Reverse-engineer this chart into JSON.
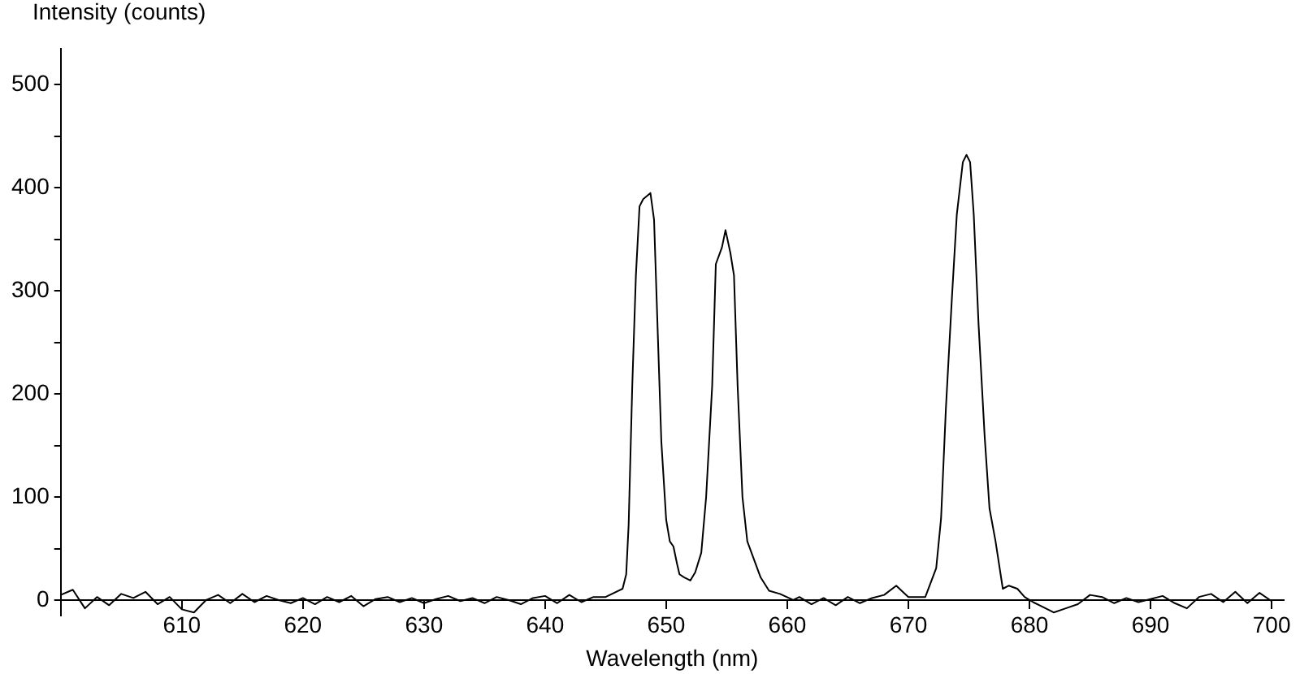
{
  "chart_data": {
    "type": "line",
    "xlabel": "Wavelength (nm)",
    "ylabel": "Intensity (counts)",
    "x": [
      600,
      601,
      602,
      603,
      604,
      605,
      606,
      607,
      608,
      609,
      610,
      611,
      612,
      613,
      614,
      615,
      616,
      617,
      618,
      619,
      620,
      621,
      622,
      623,
      624,
      625,
      626,
      627,
      628,
      629,
      630,
      631,
      632,
      633,
      634,
      635,
      636,
      637,
      638,
      639,
      640,
      641,
      642,
      643,
      644,
      645,
      646.4,
      646.7,
      646.9,
      647.2,
      647.5,
      647.8,
      648.1,
      648.7,
      649.0,
      649.3,
      649.6,
      650.0,
      650.3,
      650.6,
      650.9,
      651.1,
      651.5,
      652.0,
      652.4,
      652.9,
      653.3,
      653.8,
      654.1,
      654.6,
      654.9,
      655.3,
      655.6,
      655.9,
      656.3,
      656.7,
      657.2,
      657.8,
      658.5,
      659.4,
      660.5,
      661,
      662,
      663,
      664,
      665,
      666,
      667,
      668,
      669,
      670.0,
      671.4,
      672.3,
      672.7,
      673.1,
      673.6,
      674.0,
      674.5,
      674.8,
      675.1,
      675.4,
      675.8,
      676.3,
      676.7,
      677.2,
      677.8,
      678.3,
      679.0,
      679.6,
      680.3,
      681,
      682,
      683,
      684,
      685,
      686,
      687,
      688,
      689,
      690,
      691,
      692,
      693,
      694,
      695,
      696,
      697,
      698,
      699,
      700
    ],
    "series": [
      {
        "color": "#000000",
        "values": [
          5,
          10,
          -8,
          3,
          -5,
          6,
          2,
          8,
          -4,
          3,
          -9,
          -12,
          0,
          5,
          -3,
          6,
          -2,
          4,
          0,
          -3,
          2,
          -4,
          3,
          -2,
          4,
          -6,
          1,
          3,
          -2,
          2,
          -3,
          1,
          4,
          -1,
          2,
          -3,
          3,
          0,
          -4,
          2,
          4,
          -3,
          5,
          -2,
          3,
          3,
          11,
          25,
          73,
          208,
          315,
          382,
          389,
          395,
          369,
          261,
          154,
          78,
          57,
          52,
          35,
          25,
          22,
          19,
          27,
          46,
          100,
          208,
          326,
          342,
          359,
          337,
          315,
          208,
          100,
          57,
          41,
          22,
          9,
          6,
          0,
          3,
          -4,
          2,
          -5,
          3,
          -3,
          2,
          5,
          14,
          3,
          3,
          31,
          79,
          186,
          294,
          374,
          425,
          432,
          425,
          374,
          267,
          159,
          89,
          57,
          11,
          14,
          11,
          3,
          -2,
          -6,
          -12,
          -8,
          -4,
          5,
          3,
          -3,
          2,
          -2,
          1,
          4,
          -3,
          -8,
          3,
          6,
          -2,
          8,
          -3,
          7,
          -1
        ]
      }
    ],
    "xlim": [
      600,
      701
    ],
    "xticks": [
      610,
      620,
      630,
      640,
      650,
      660,
      670,
      680,
      690,
      700
    ],
    "ylim": [
      -15,
      535
    ],
    "yticks": [
      0,
      {
        "value": 50,
        "label": null
      },
      100,
      {
        "value": 150,
        "label": null
      },
      200,
      {
        "value": 250,
        "label": null
      },
      300,
      {
        "value": 350,
        "label": null
      },
      400,
      {
        "value": 450,
        "label": null
      },
      500
    ],
    "grid": false,
    "legend": false,
    "marker": "none",
    "line_style": "solid"
  }
}
